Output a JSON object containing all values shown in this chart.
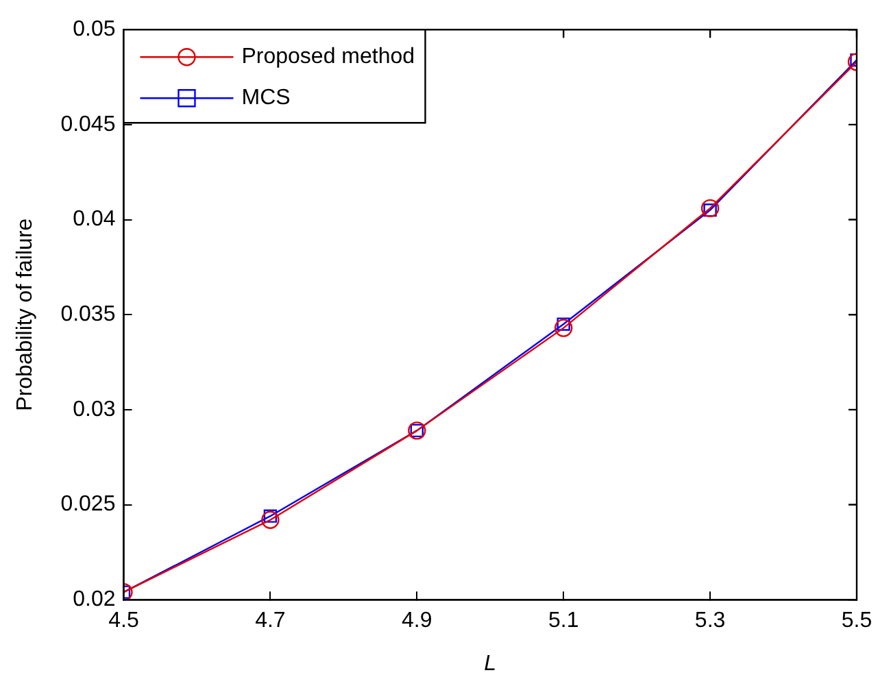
{
  "chart_data": {
    "type": "line",
    "xlabel": "L",
    "ylabel": "Probability of failure",
    "x": [
      4.5,
      4.7,
      4.9,
      5.1,
      5.3,
      5.5
    ],
    "series": [
      {
        "name": "Proposed method",
        "color": "#e00000",
        "marker": "circle",
        "values": [
          0.0204,
          0.0242,
          0.0289,
          0.0343,
          0.0406,
          0.0483
        ]
      },
      {
        "name": "MCS",
        "color": "#0000ff",
        "marker": "square",
        "values": [
          0.0204,
          0.0244,
          0.0289,
          0.0345,
          0.0405,
          0.0484
        ]
      }
    ],
    "xlim": [
      4.5,
      5.5
    ],
    "xticks": [
      4.5,
      4.7,
      4.9,
      5.1,
      5.3,
      5.5
    ],
    "ylim": [
      0.02,
      0.05
    ],
    "yticks": [
      0.02,
      0.025,
      0.03,
      0.035,
      0.04,
      0.045,
      0.05
    ],
    "grid": false,
    "legend": "top left",
    "line_style": "solid"
  }
}
